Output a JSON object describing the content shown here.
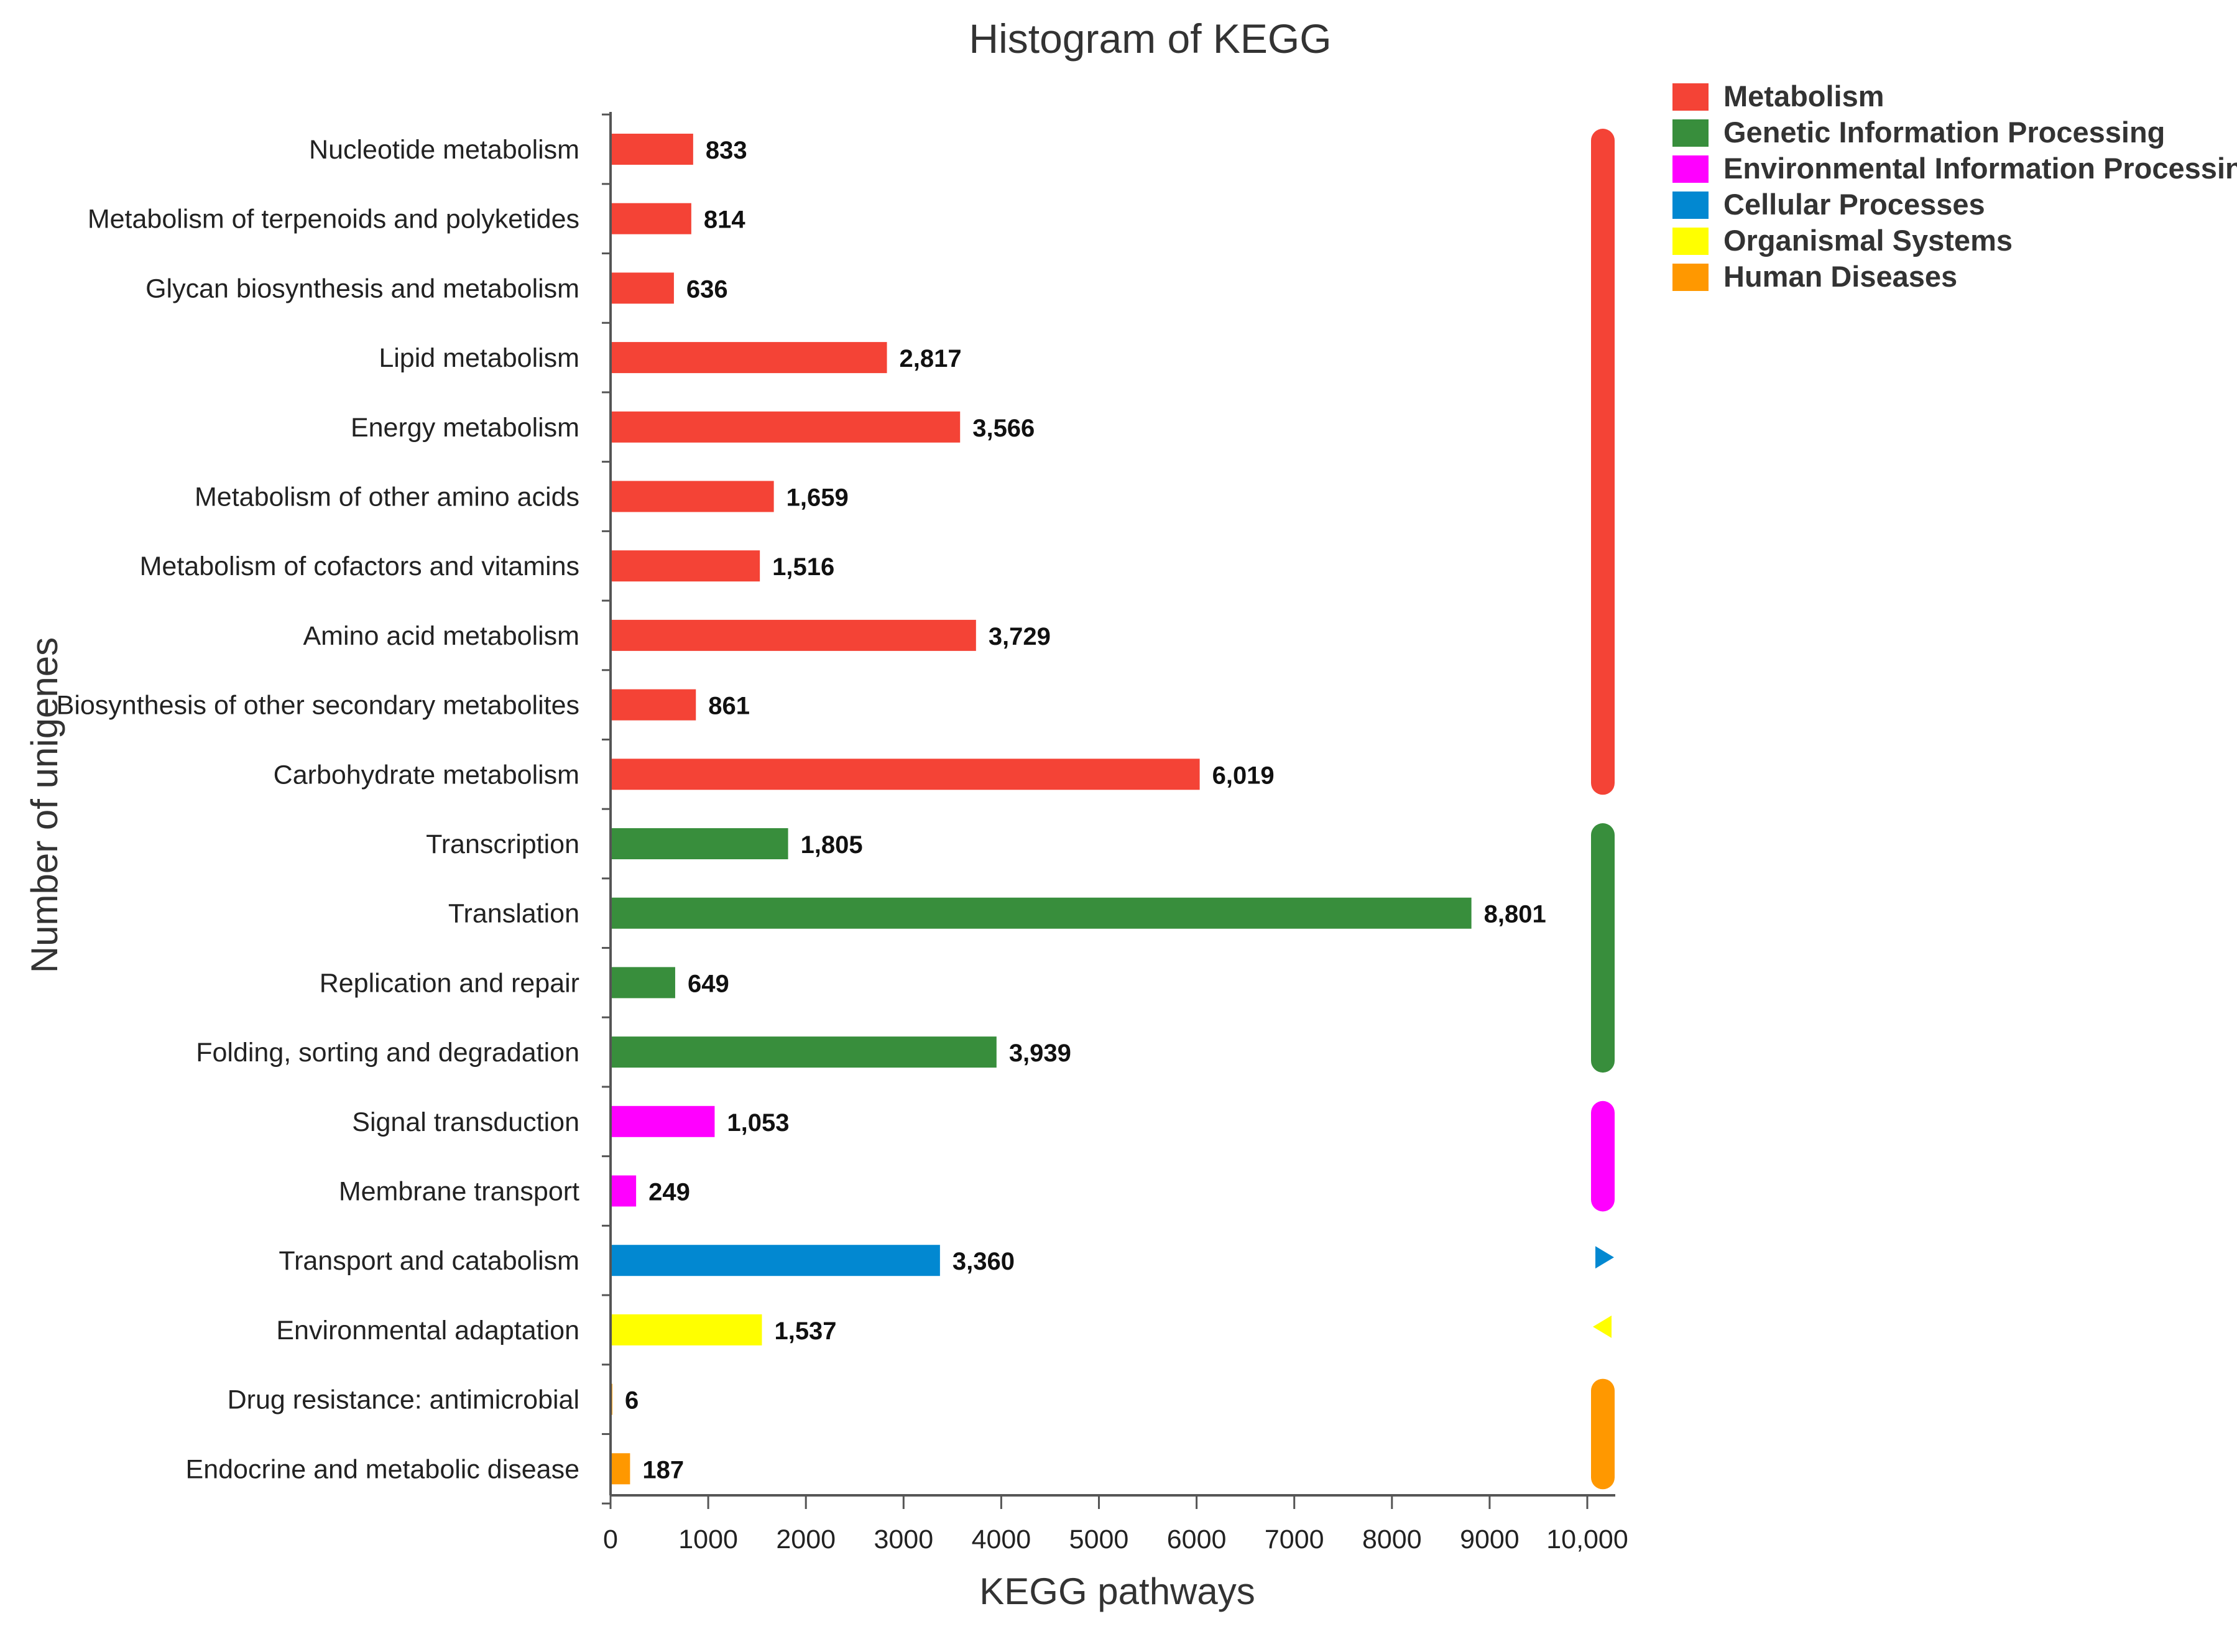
{
  "chart_data": {
    "type": "bar",
    "orientation": "horizontal",
    "title": "Histogram of KEGG",
    "xlabel": "KEGG pathways",
    "ylabel": "Number of unigenes",
    "xlim": [
      0,
      10000
    ],
    "xticks": [
      "0",
      "1000",
      "2000",
      "3000",
      "4000",
      "5000",
      "6000",
      "7000",
      "8000",
      "9000",
      "10,000"
    ],
    "groups": [
      {
        "name": "Metabolism",
        "color": "#f44336"
      },
      {
        "name": "Genetic Information Processing",
        "color": "#388e3c"
      },
      {
        "name": "Environmental Information Processing",
        "color": "#ff00ff"
      },
      {
        "name": "Cellular Processes",
        "color": "#0288d1"
      },
      {
        "name": "Organismal Systems",
        "color": "#ffff00"
      },
      {
        "name": "Human Diseases",
        "color": "#ff9800"
      }
    ],
    "categories": [
      {
        "label": "Nucleotide metabolism",
        "value": 833,
        "value_label": "833",
        "group": 0
      },
      {
        "label": "Metabolism of terpenoids and polyketides",
        "value": 814,
        "value_label": "814",
        "group": 0
      },
      {
        "label": "Glycan biosynthesis and metabolism",
        "value": 636,
        "value_label": "636",
        "group": 0
      },
      {
        "label": "Lipid metabolism",
        "value": 2817,
        "value_label": "2,817",
        "group": 0
      },
      {
        "label": "Energy metabolism",
        "value": 3566,
        "value_label": "3,566",
        "group": 0
      },
      {
        "label": "Metabolism of other amino acids",
        "value": 1659,
        "value_label": "1,659",
        "group": 0
      },
      {
        "label": "Metabolism of cofactors and vitamins",
        "value": 1516,
        "value_label": "1,516",
        "group": 0
      },
      {
        "label": "Amino acid metabolism",
        "value": 3729,
        "value_label": "3,729",
        "group": 0
      },
      {
        "label": "Biosynthesis of other secondary metabolites",
        "value": 861,
        "value_label": "861",
        "group": 0
      },
      {
        "label": "Carbohydrate metabolism",
        "value": 6019,
        "value_label": "6,019",
        "group": 0
      },
      {
        "label": "Transcription",
        "value": 1805,
        "value_label": "1,805",
        "group": 1
      },
      {
        "label": "Translation",
        "value": 8801,
        "value_label": "8,801",
        "group": 1
      },
      {
        "label": "Replication and repair",
        "value": 649,
        "value_label": "649",
        "group": 1
      },
      {
        "label": "Folding, sorting and degradation",
        "value": 3939,
        "value_label": "3,939",
        "group": 1
      },
      {
        "label": "Signal transduction",
        "value": 1053,
        "value_label": "1,053",
        "group": 2
      },
      {
        "label": "Membrane transport",
        "value": 249,
        "value_label": "249",
        "group": 2
      },
      {
        "label": "Transport and catabolism",
        "value": 3360,
        "value_label": "3,360",
        "group": 3
      },
      {
        "label": "Environmental adaptation",
        "value": 1537,
        "value_label": "1,537",
        "group": 4
      },
      {
        "label": "Drug resistance: antimicrobial",
        "value": 6,
        "value_label": "6",
        "group": 5
      },
      {
        "label": "Endocrine and metabolic disease",
        "value": 187,
        "value_label": "187",
        "group": 5
      }
    ],
    "legend_position": "top-right",
    "grid": false
  }
}
